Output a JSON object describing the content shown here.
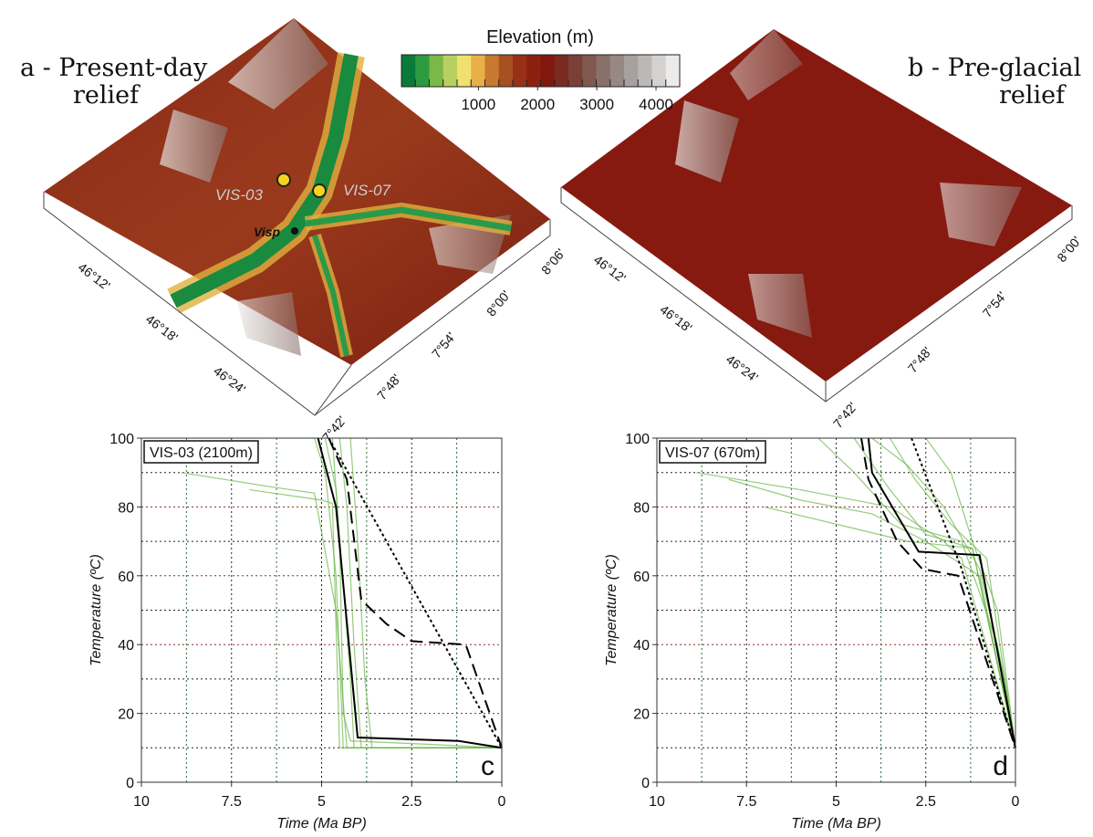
{
  "colorbar": {
    "title": "Elevation (m)",
    "colors": [
      "#0a7a3a",
      "#2e9a40",
      "#7ab848",
      "#b8d060",
      "#f0e070",
      "#e8b048",
      "#c87830",
      "#a85020",
      "#983018",
      "#8c2010",
      "#801810",
      "#7a2a20",
      "#7a4038",
      "#805850",
      "#8a706a",
      "#988884",
      "#a8a09e",
      "#bcb8b6",
      "#d4d2d0",
      "#ecebea"
    ],
    "clim": [
      -300,
      4400
    ],
    "ticks": [
      1000,
      2000,
      3000,
      4000
    ]
  },
  "map_a": {
    "title_lines": [
      "a - Present-day",
      "relief"
    ],
    "sites": [
      "VIS-03",
      "VIS-07"
    ],
    "town": "Visp",
    "lat_labels": [
      "46°12'",
      "46°18'",
      "46°24'"
    ],
    "lon_labels": [
      "7°42'",
      "7°48'",
      "7°54'",
      "8°00'",
      "8°06'"
    ]
  },
  "map_b": {
    "title_lines": [
      "b - Pre-glacial",
      "relief"
    ],
    "lat_labels": [
      "46°12'",
      "46°18'",
      "46°24'"
    ],
    "lon_labels": [
      "7°42'",
      "7°48'",
      "7°54'",
      "8°00'"
    ]
  },
  "chart_data": [
    {
      "type": "line",
      "title": "VIS-03 (2100m)",
      "panel": "c",
      "xlabel": "Time (Ma BP)",
      "ylabel": "Temperature (ºC)",
      "xlim": [
        10,
        0
      ],
      "ylim": [
        0,
        100
      ],
      "xticks": [
        10,
        7.5,
        5,
        2.5,
        0
      ],
      "yticks": [
        0,
        20,
        40,
        60,
        80,
        100
      ],
      "minor_xticks": [
        8.75,
        6.25,
        3.75,
        1.25
      ],
      "minor_yticks": [
        10,
        30,
        50,
        70,
        90
      ],
      "grid": true,
      "series": [
        {
          "color": "#6ab546",
          "style": "solid",
          "opacity": 0.7,
          "x": [
            5.2,
            4.9,
            4.6,
            4.4,
            0
          ],
          "values": [
            100,
            90,
            60,
            10,
            10
          ]
        },
        {
          "color": "#6ab546",
          "style": "solid",
          "opacity": 0.7,
          "x": [
            4.5,
            4.3,
            4.1,
            3.9,
            0
          ],
          "values": [
            100,
            80,
            40,
            10,
            10
          ]
        },
        {
          "color": "#6ab546",
          "style": "solid",
          "opacity": 0.7,
          "x": [
            4.9,
            4.6,
            4.2,
            4.1,
            0
          ],
          "values": [
            100,
            85,
            30,
            10,
            10
          ]
        },
        {
          "color": "#6ab546",
          "style": "solid",
          "opacity": 0.7,
          "x": [
            8.9,
            6.5,
            5.2,
            4.6,
            4.3,
            0
          ],
          "values": [
            90,
            86,
            84,
            50,
            10,
            10
          ]
        },
        {
          "color": "#6ab546",
          "style": "solid",
          "opacity": 0.7,
          "x": [
            4.2,
            4.0,
            3.8,
            3.6,
            0
          ],
          "values": [
            100,
            70,
            30,
            10,
            10
          ]
        },
        {
          "color": "#6ab546",
          "style": "solid",
          "opacity": 0.7,
          "x": [
            7.0,
            5.0,
            4.7,
            4.5,
            0
          ],
          "values": [
            85,
            82,
            81,
            10,
            10
          ]
        },
        {
          "color": "#6ab546",
          "style": "solid",
          "opacity": 0.7,
          "x": [
            4.7,
            4.5,
            4.4,
            4.2,
            2,
            0
          ],
          "values": [
            100,
            70,
            20,
            12,
            11,
            10
          ]
        },
        {
          "color": "#000000",
          "style": "dotted",
          "opacity": 1,
          "x": [
            4.8,
            0
          ],
          "values": [
            100,
            10
          ]
        },
        {
          "color": "#000000",
          "style": "dashed",
          "opacity": 1,
          "x": [
            4.8,
            4.3,
            3.9,
            3.2,
            2.5,
            1.0,
            0
          ],
          "values": [
            100,
            88,
            53,
            46,
            41,
            40,
            10
          ]
        },
        {
          "color": "#000000",
          "style": "solid",
          "opacity": 1,
          "x": [
            5.1,
            4.6,
            4.0,
            1.2,
            0
          ],
          "values": [
            100,
            80,
            13,
            12,
            10
          ]
        }
      ]
    },
    {
      "type": "line",
      "title": "VIS-07 (670m)",
      "panel": "d",
      "xlabel": "Time (Ma BP)",
      "ylabel": "Temperature (ºC)",
      "xlim": [
        10,
        0
      ],
      "ylim": [
        0,
        100
      ],
      "xticks": [
        10,
        7.5,
        5,
        2.5,
        0
      ],
      "yticks": [
        0,
        20,
        40,
        60,
        80,
        100
      ],
      "minor_xticks": [
        8.75,
        6.25,
        3.75,
        1.25
      ],
      "minor_yticks": [
        10,
        30,
        50,
        70,
        90
      ],
      "grid": true,
      "series": [
        {
          "color": "#6ab546",
          "style": "solid",
          "opacity": 0.7,
          "x": [
            8.9,
            6,
            3.5,
            2,
            1.5,
            0
          ],
          "values": [
            90,
            85,
            80,
            70,
            65,
            10
          ]
        },
        {
          "color": "#6ab546",
          "style": "solid",
          "opacity": 0.7,
          "x": [
            4.5,
            3.5,
            2.5,
            1.2,
            0
          ],
          "values": [
            100,
            85,
            72,
            68,
            10
          ]
        },
        {
          "color": "#6ab546",
          "style": "solid",
          "opacity": 0.7,
          "x": [
            3.5,
            2.8,
            1.8,
            0.8,
            0
          ],
          "values": [
            100,
            88,
            75,
            65,
            10
          ]
        },
        {
          "color": "#6ab546",
          "style": "solid",
          "opacity": 0.7,
          "x": [
            8,
            6,
            4,
            2.5,
            1,
            0
          ],
          "values": [
            88,
            82,
            78,
            70,
            60,
            10
          ]
        },
        {
          "color": "#6ab546",
          "style": "solid",
          "opacity": 0.7,
          "x": [
            5.5,
            4.5,
            3.2,
            1.5,
            0.5,
            0
          ],
          "values": [
            100,
            90,
            75,
            70,
            40,
            10
          ]
        },
        {
          "color": "#6ab546",
          "style": "solid",
          "opacity": 0.7,
          "x": [
            2.5,
            1.8,
            1.2,
            0.5,
            0
          ],
          "values": [
            100,
            90,
            70,
            50,
            10
          ]
        },
        {
          "color": "#6ab546",
          "style": "solid",
          "opacity": 0.7,
          "x": [
            7,
            5,
            3,
            1.2,
            0
          ],
          "values": [
            80,
            75,
            70,
            68,
            10
          ]
        },
        {
          "color": "#6ab546",
          "style": "solid",
          "opacity": 0.7,
          "x": [
            4,
            3,
            2,
            1,
            0.3,
            0
          ],
          "values": [
            100,
            92,
            80,
            62,
            30,
            10
          ]
        },
        {
          "color": "#000000",
          "style": "dotted",
          "opacity": 1,
          "x": [
            2.9,
            1.5,
            0
          ],
          "values": [
            100,
            62,
            10
          ]
        },
        {
          "color": "#000000",
          "style": "dashed",
          "opacity": 1,
          "x": [
            4.3,
            4.1,
            3.3,
            2.6,
            1.6,
            0
          ],
          "values": [
            100,
            88,
            70,
            62,
            60,
            10
          ]
        },
        {
          "color": "#000000",
          "style": "solid",
          "opacity": 1,
          "x": [
            4.1,
            4.0,
            2.7,
            1.0,
            0
          ],
          "values": [
            100,
            90,
            67,
            66,
            10
          ]
        }
      ]
    }
  ]
}
